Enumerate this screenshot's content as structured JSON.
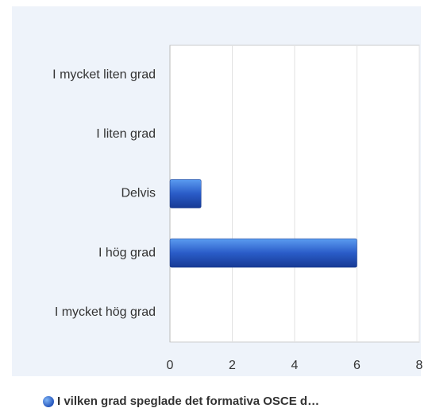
{
  "chart_data": {
    "type": "bar",
    "orientation": "horizontal",
    "categories": [
      "I mycket liten grad",
      "I liten grad",
      "Delvis",
      "I hög grad",
      "I mycket hög grad"
    ],
    "series": [
      {
        "name": "I vilken grad speglade det formativa OSCE d…",
        "color": "#2a5cc8",
        "values": [
          0,
          0,
          1,
          6,
          0
        ]
      }
    ],
    "xlim": [
      0,
      8
    ],
    "xticks": [
      0,
      2,
      4,
      6,
      8
    ],
    "grid": true,
    "legend": "bottom"
  }
}
